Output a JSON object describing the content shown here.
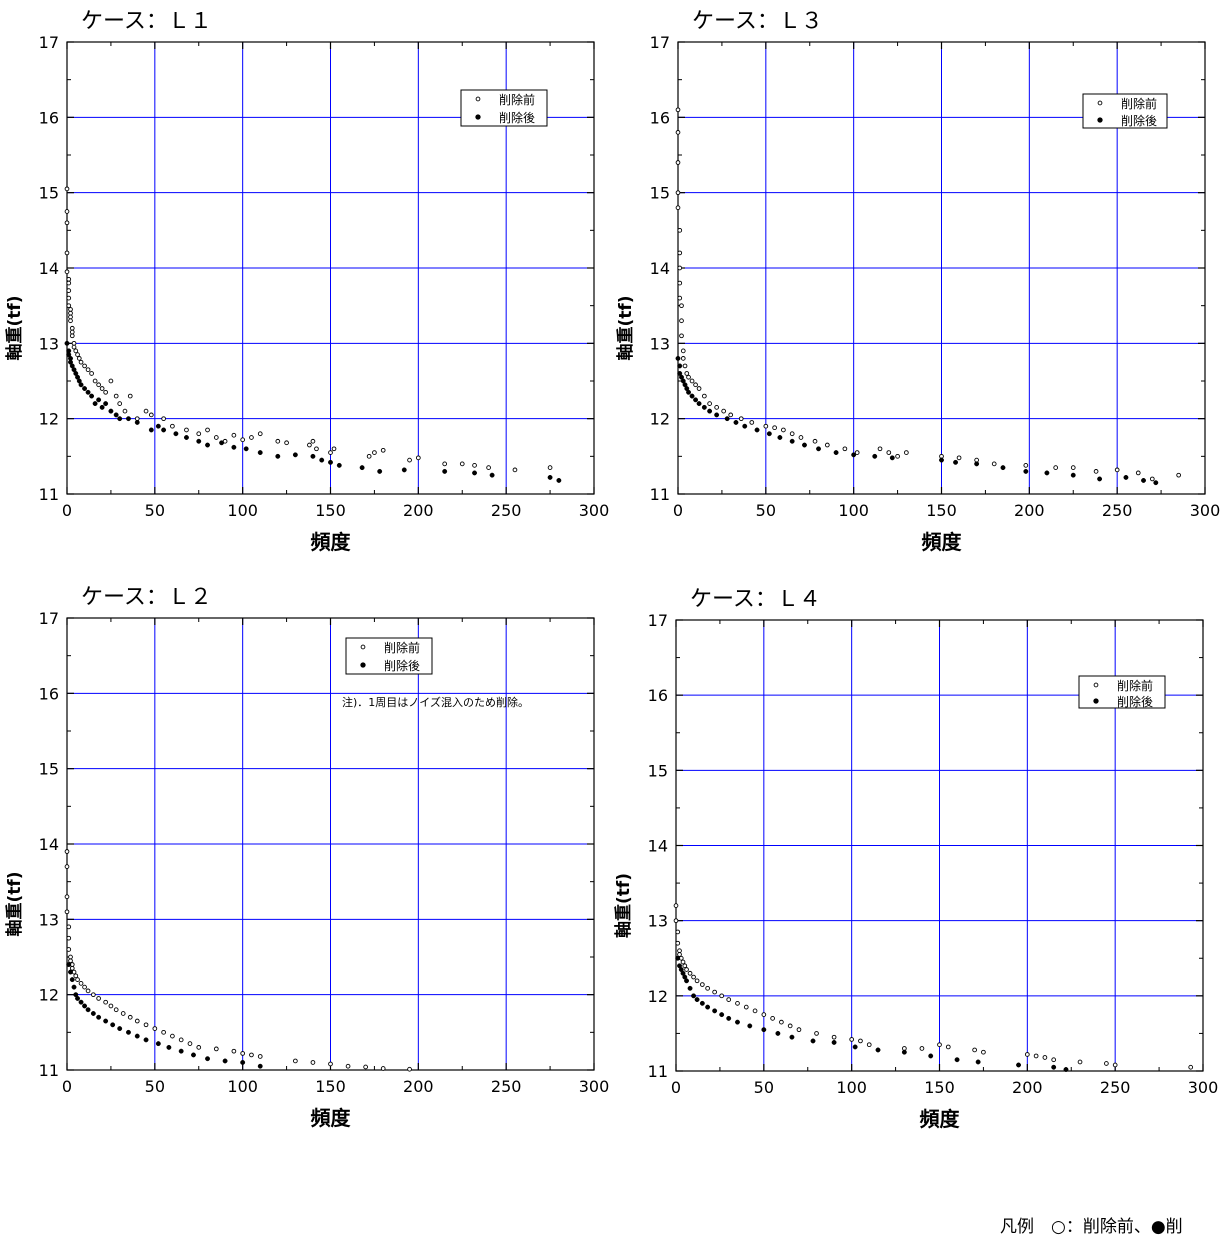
{
  "chart_data": [
    {
      "type": "scatter",
      "title": "ケース：Ｌ１",
      "xlabel": "頻度",
      "ylabel": "軸重(tf)",
      "xlim": [
        0,
        300
      ],
      "ylim": [
        11,
        17
      ],
      "xticks": [
        0,
        50,
        100,
        150,
        200,
        250,
        300
      ],
      "yticks": [
        11,
        12,
        13,
        14,
        15,
        16,
        17
      ],
      "grid": true,
      "legend": "top-right",
      "note": "",
      "series": [
        {
          "name": "削除前",
          "marker": "open-circle",
          "x": [
            0,
            0,
            0,
            0,
            0,
            1,
            1,
            1,
            1,
            1,
            2,
            2,
            2,
            2,
            3,
            3,
            3,
            4,
            4,
            5,
            6,
            7,
            8,
            10,
            12,
            14,
            16,
            18,
            20,
            22,
            25,
            28,
            30,
            33,
            36,
            40,
            45,
            48,
            55,
            60,
            68,
            75,
            80,
            85,
            90,
            95,
            100,
            105,
            110,
            120,
            125,
            138,
            140,
            142,
            150,
            152,
            172,
            175,
            180,
            195,
            200,
            215,
            225,
            232,
            240,
            255,
            275
          ],
          "y": [
            15.05,
            14.75,
            14.6,
            14.2,
            13.95,
            13.85,
            13.8,
            13.7,
            13.6,
            13.5,
            13.45,
            13.4,
            13.35,
            13.3,
            13.2,
            13.15,
            13.1,
            13.0,
            12.95,
            12.9,
            12.85,
            12.8,
            12.75,
            12.7,
            12.65,
            12.6,
            12.5,
            12.45,
            12.4,
            12.35,
            12.5,
            12.3,
            12.2,
            12.1,
            12.3,
            12.0,
            12.1,
            12.05,
            12.0,
            11.9,
            11.85,
            11.8,
            11.85,
            11.75,
            11.7,
            11.78,
            11.72,
            11.75,
            11.8,
            11.7,
            11.68,
            11.65,
            11.7,
            11.6,
            11.55,
            11.6,
            11.5,
            11.55,
            11.58,
            11.45,
            11.48,
            11.4,
            11.4,
            11.38,
            11.35,
            11.32,
            11.35
          ]
        },
        {
          "name": "削除後",
          "marker": "filled-circle",
          "x": [
            0,
            1,
            1,
            2,
            2,
            3,
            4,
            5,
            6,
            7,
            8,
            10,
            12,
            14,
            16,
            18,
            20,
            22,
            25,
            28,
            30,
            35,
            40,
            48,
            52,
            55,
            62,
            68,
            75,
            80,
            88,
            95,
            102,
            110,
            120,
            130,
            140,
            145,
            150,
            155,
            168,
            178,
            192,
            215,
            232,
            242,
            275,
            280
          ],
          "y": [
            13.0,
            12.9,
            12.85,
            12.8,
            12.75,
            12.7,
            12.65,
            12.6,
            12.55,
            12.5,
            12.45,
            12.4,
            12.35,
            12.3,
            12.2,
            12.25,
            12.15,
            12.2,
            12.1,
            12.05,
            12.0,
            12.0,
            11.95,
            11.85,
            11.9,
            11.85,
            11.8,
            11.75,
            11.7,
            11.65,
            11.68,
            11.62,
            11.6,
            11.55,
            11.5,
            11.52,
            11.5,
            11.45,
            11.42,
            11.38,
            11.35,
            11.3,
            11.32,
            11.3,
            11.28,
            11.25,
            11.22,
            11.18
          ]
        }
      ]
    },
    {
      "type": "scatter",
      "title": "ケース：Ｌ３",
      "xlabel": "頻度",
      "ylabel": "軸重(tf)",
      "xlim": [
        0,
        300
      ],
      "ylim": [
        11,
        17
      ],
      "xticks": [
        0,
        50,
        100,
        150,
        200,
        250,
        300
      ],
      "yticks": [
        11,
        12,
        13,
        14,
        15,
        16,
        17
      ],
      "grid": true,
      "legend": "top-right",
      "note": "",
      "series": [
        {
          "name": "削除前",
          "marker": "open-circle",
          "x": [
            0,
            0,
            0,
            0,
            0,
            1,
            1,
            1,
            1,
            1,
            2,
            2,
            2,
            3,
            3,
            4,
            5,
            6,
            8,
            10,
            12,
            15,
            18,
            22,
            26,
            30,
            36,
            42,
            50,
            55,
            60,
            65,
            70,
            78,
            85,
            95,
            102,
            115,
            120,
            125,
            130,
            150,
            160,
            170,
            180,
            198,
            215,
            225,
            238,
            250,
            262,
            270,
            285
          ],
          "y": [
            16.1,
            15.8,
            15.4,
            15.0,
            14.8,
            14.5,
            14.2,
            14.0,
            13.8,
            13.6,
            13.5,
            13.3,
            13.1,
            12.9,
            12.8,
            12.7,
            12.6,
            12.55,
            12.5,
            12.45,
            12.4,
            12.3,
            12.2,
            12.15,
            12.1,
            12.05,
            12.0,
            11.95,
            11.9,
            11.88,
            11.85,
            11.8,
            11.75,
            11.7,
            11.65,
            11.6,
            11.55,
            11.6,
            11.55,
            11.5,
            11.55,
            11.5,
            11.48,
            11.45,
            11.4,
            11.38,
            11.35,
            11.35,
            11.3,
            11.32,
            11.28,
            11.2,
            11.25
          ]
        },
        {
          "name": "削除後",
          "marker": "filled-circle",
          "x": [
            0,
            1,
            1,
            2,
            3,
            4,
            5,
            6,
            8,
            10,
            12,
            15,
            18,
            22,
            28,
            33,
            38,
            45,
            52,
            58,
            65,
            72,
            80,
            90,
            100,
            112,
            122,
            150,
            158,
            170,
            185,
            198,
            210,
            225,
            240,
            255,
            265,
            272
          ],
          "y": [
            12.8,
            12.7,
            12.6,
            12.55,
            12.5,
            12.45,
            12.4,
            12.35,
            12.3,
            12.25,
            12.2,
            12.15,
            12.1,
            12.05,
            12.0,
            11.95,
            11.9,
            11.85,
            11.8,
            11.75,
            11.7,
            11.65,
            11.6,
            11.55,
            11.52,
            11.5,
            11.48,
            11.45,
            11.42,
            11.4,
            11.35,
            11.3,
            11.28,
            11.25,
            11.2,
            11.22,
            11.18,
            11.15
          ]
        }
      ]
    },
    {
      "type": "scatter",
      "title": "ケース：Ｌ２",
      "xlabel": "頻度",
      "ylabel": "軸重(tf)",
      "xlim": [
        0,
        300
      ],
      "ylim": [
        11,
        17
      ],
      "xticks": [
        0,
        50,
        100,
        150,
        200,
        250,
        300
      ],
      "yticks": [
        11,
        12,
        13,
        14,
        15,
        16,
        17
      ],
      "grid": true,
      "legend": "top-right",
      "note": "注)．1周目はノイズ混入のため削除。",
      "series": [
        {
          "name": "削除前",
          "marker": "open-circle",
          "x": [
            0,
            0,
            0,
            0,
            1,
            1,
            1,
            2,
            2,
            3,
            3,
            4,
            5,
            6,
            8,
            10,
            12,
            15,
            18,
            22,
            25,
            28,
            32,
            36,
            40,
            45,
            50,
            55,
            60,
            65,
            70,
            75,
            85,
            95,
            100,
            105,
            110,
            130,
            140,
            150,
            160,
            170,
            180,
            195
          ],
          "y": [
            13.9,
            13.7,
            13.3,
            13.1,
            12.9,
            12.75,
            12.6,
            12.5,
            12.45,
            12.4,
            12.35,
            12.3,
            12.25,
            12.2,
            12.15,
            12.1,
            12.05,
            12.0,
            11.95,
            11.9,
            11.85,
            11.8,
            11.75,
            11.7,
            11.65,
            11.6,
            11.55,
            11.5,
            11.45,
            11.4,
            11.35,
            11.3,
            11.28,
            11.25,
            11.22,
            11.2,
            11.18,
            11.12,
            11.1,
            11.08,
            11.05,
            11.04,
            11.02,
            11.01
          ]
        },
        {
          "name": "削除後",
          "marker": "filled-circle",
          "x": [
            1,
            2,
            3,
            4,
            5,
            6,
            8,
            10,
            12,
            15,
            18,
            22,
            26,
            30,
            35,
            40,
            45,
            52,
            58,
            65,
            72,
            80,
            90,
            100,
            110
          ],
          "y": [
            12.4,
            12.3,
            12.2,
            12.1,
            12.0,
            11.95,
            11.9,
            11.85,
            11.8,
            11.75,
            11.7,
            11.65,
            11.6,
            11.55,
            11.5,
            11.45,
            11.4,
            11.35,
            11.3,
            11.25,
            11.2,
            11.15,
            11.12,
            11.1,
            11.05
          ]
        }
      ]
    },
    {
      "type": "scatter",
      "title": "ケース：Ｌ４",
      "xlabel": "頻度",
      "ylabel": "軸重(tf)",
      "xlim": [
        0,
        300
      ],
      "ylim": [
        11,
        17
      ],
      "xticks": [
        0,
        50,
        100,
        150,
        200,
        250,
        300
      ],
      "yticks": [
        11,
        12,
        13,
        14,
        15,
        16,
        17
      ],
      "grid": true,
      "legend": "top-right",
      "note": "",
      "series": [
        {
          "name": "削除前",
          "marker": "open-circle",
          "x": [
            0,
            0,
            1,
            1,
            2,
            2,
            3,
            4,
            5,
            6,
            8,
            10,
            12,
            15,
            18,
            22,
            26,
            30,
            35,
            40,
            45,
            50,
            55,
            60,
            65,
            70,
            80,
            90,
            100,
            105,
            110,
            130,
            140,
            150,
            155,
            170,
            175,
            200,
            205,
            210,
            215,
            230,
            245,
            250,
            293
          ],
          "y": [
            13.2,
            13.0,
            12.85,
            12.7,
            12.6,
            12.55,
            12.5,
            12.45,
            12.4,
            12.35,
            12.3,
            12.25,
            12.2,
            12.15,
            12.1,
            12.05,
            12.0,
            11.95,
            11.9,
            11.85,
            11.8,
            11.75,
            11.7,
            11.65,
            11.6,
            11.55,
            11.5,
            11.45,
            11.42,
            11.4,
            11.35,
            11.3,
            11.3,
            11.35,
            11.32,
            11.28,
            11.25,
            11.22,
            11.2,
            11.18,
            11.15,
            11.12,
            11.1,
            11.08,
            11.05
          ]
        },
        {
          "name": "削除後",
          "marker": "filled-circle",
          "x": [
            1,
            2,
            3,
            4,
            5,
            6,
            8,
            10,
            12,
            15,
            18,
            22,
            26,
            30,
            35,
            42,
            50,
            58,
            66,
            78,
            90,
            102,
            115,
            130,
            145,
            160,
            172,
            195,
            215,
            222
          ],
          "y": [
            12.5,
            12.4,
            12.35,
            12.3,
            12.25,
            12.2,
            12.1,
            12.0,
            11.95,
            11.9,
            11.85,
            11.8,
            11.75,
            11.7,
            11.65,
            11.6,
            11.55,
            11.5,
            11.45,
            11.4,
            11.38,
            11.32,
            11.28,
            11.25,
            11.2,
            11.15,
            11.12,
            11.08,
            11.05,
            11.02
          ]
        }
      ]
    }
  ],
  "footer": {
    "text": "凡例　○：削除前、●削"
  }
}
